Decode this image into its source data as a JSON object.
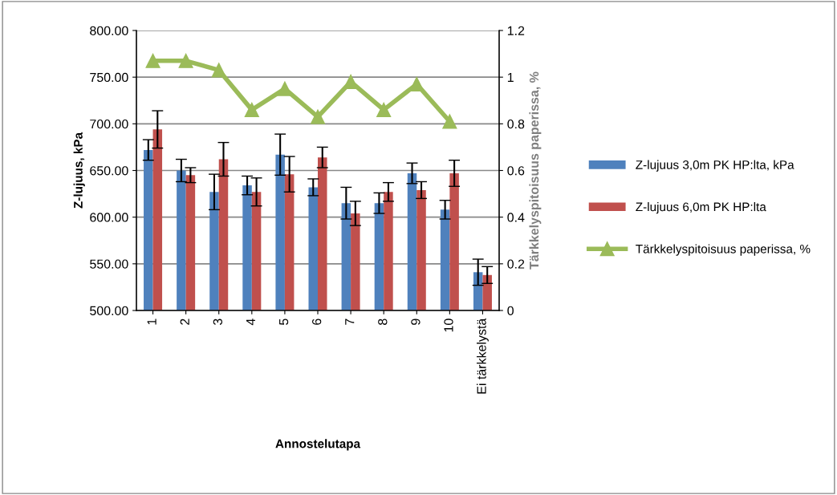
{
  "chart_data": {
    "type": "bar",
    "categories": [
      "1",
      "2",
      "3",
      "4",
      "5",
      "6",
      "7",
      "8",
      "9",
      "10",
      "Ei tärkkelystä"
    ],
    "xlabel": "Annostelutapa",
    "ylabel": "Z-lujuus, kPa",
    "y2label": "Tärkkelyspitoisuus paperissa, %",
    "ylim": [
      500,
      800
    ],
    "yticks": [
      {
        "value": 500,
        "label": "500.00"
      },
      {
        "value": 550,
        "label": "550.00"
      },
      {
        "value": 600,
        "label": "600.00"
      },
      {
        "value": 650,
        "label": "650.00"
      },
      {
        "value": 700,
        "label": "700.00"
      },
      {
        "value": 750,
        "label": "750.00"
      },
      {
        "value": 800,
        "label": "800.00"
      }
    ],
    "y2lim": [
      0,
      1.2
    ],
    "y2ticks": [
      0,
      0.2,
      0.4,
      0.6,
      0.8,
      1,
      1.2
    ],
    "grid": "y",
    "legend": "right",
    "series": [
      {
        "name": "Z-lujuus 3,0m PK HP:lta, kPa",
        "color": "#4f81bd",
        "values": [
          672,
          650,
          627,
          634,
          667,
          632,
          615,
          615,
          647,
          608,
          541
        ],
        "errors": [
          11,
          12,
          19,
          10,
          22,
          9,
          17,
          11,
          11,
          10,
          14
        ]
      },
      {
        "name": "Z-lujuus 6,0m PK HP:lta",
        "color": "#c0504d",
        "values": [
          694,
          645,
          662,
          627,
          646,
          664,
          604,
          627,
          629,
          647,
          538
        ],
        "errors": [
          20,
          8,
          18,
          15,
          19,
          11,
          13,
          10,
          9,
          14,
          9
        ]
      },
      {
        "name": "Tärkkelyspitoisuus paperissa, %",
        "type": "line",
        "axis": "y2",
        "color": "#9bbb59",
        "marker": "triangle",
        "values": [
          1.07,
          1.07,
          1.03,
          0.86,
          0.95,
          0.83,
          0.98,
          0.86,
          0.97,
          0.81,
          null
        ]
      }
    ]
  }
}
